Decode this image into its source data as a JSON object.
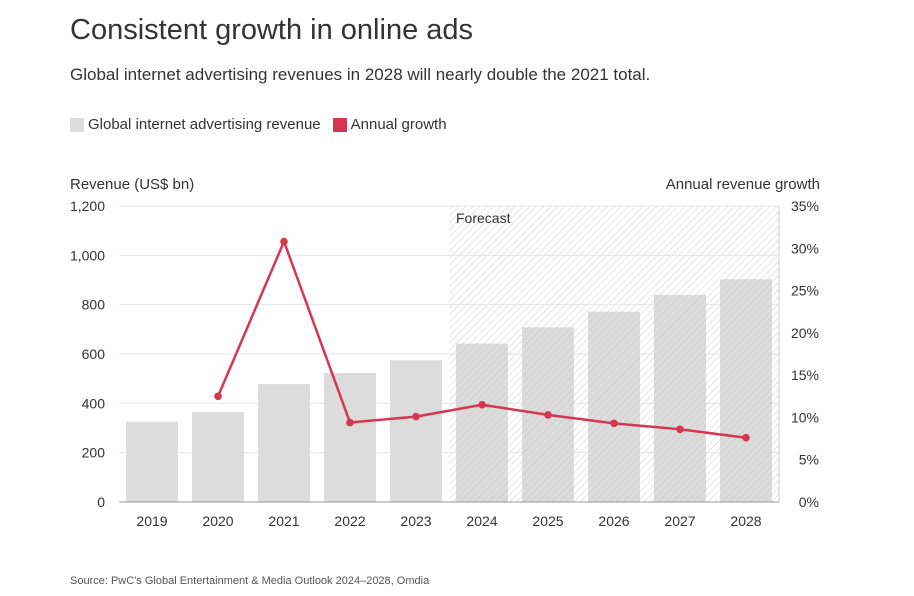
{
  "header": {
    "title": "Consistent growth in online ads",
    "subtitle": "Global internet advertising revenues in 2028 will nearly double the 2021 total."
  },
  "legend": {
    "items": [
      {
        "label": "Global internet advertising revenue",
        "color": "#dcdcdc"
      },
      {
        "label": "Annual growth",
        "color": "#d4374f"
      }
    ]
  },
  "axes": {
    "left_title": "Revenue (US$ bn)",
    "right_title": "Annual revenue growth"
  },
  "source": "Source: PwC's Global Entertainment & Media Outlook 2024–2028, Omdia",
  "chart_data": {
    "type": "bar",
    "categories": [
      "2019",
      "2020",
      "2021",
      "2022",
      "2023",
      "2024",
      "2025",
      "2026",
      "2027",
      "2028"
    ],
    "series": [
      {
        "name": "Global internet advertising revenue",
        "type": "bar",
        "axis": "left",
        "color": "#dcdcdc",
        "values": [
          325,
          365,
          478,
          523,
          575,
          642,
          708,
          772,
          840,
          903
        ]
      },
      {
        "name": "Annual growth",
        "type": "line",
        "axis": "right",
        "color": "#d4374f",
        "values": [
          null,
          12.5,
          30.8,
          9.4,
          10.1,
          11.5,
          10.3,
          9.3,
          8.6,
          7.6
        ]
      }
    ],
    "y_left": {
      "label": "Revenue (US$ bn)",
      "range": [
        0,
        1200
      ],
      "ticks": [
        "0",
        "200",
        "400",
        "600",
        "800",
        "1,000",
        "1,200"
      ]
    },
    "y_right": {
      "label": "Annual revenue growth",
      "range": [
        0,
        35
      ],
      "ticks": [
        "0%",
        "5%",
        "10%",
        "15%",
        "20%",
        "25%",
        "30%",
        "35%"
      ]
    },
    "forecast": {
      "label": "Forecast",
      "start_category": "2024"
    },
    "grid": true
  }
}
